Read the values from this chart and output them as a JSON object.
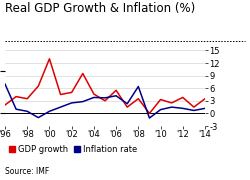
{
  "title": "Real GDP Growth & Inflation (%)",
  "source": "Source: IMF",
  "years": [
    1996,
    1997,
    1998,
    1999,
    2000,
    2001,
    2002,
    2003,
    2004,
    2005,
    2006,
    2007,
    2008,
    2009,
    2010,
    2011,
    2012,
    2013,
    2014
  ],
  "gdp_growth": [
    2.0,
    4.0,
    3.5,
    6.5,
    13.0,
    4.5,
    5.0,
    9.5,
    4.6,
    3.0,
    5.5,
    1.5,
    3.5,
    0.0,
    3.3,
    2.5,
    3.8,
    1.5,
    3.5
  ],
  "inflation": [
    7.0,
    1.0,
    0.5,
    -1.0,
    0.5,
    1.5,
    2.5,
    2.8,
    3.8,
    3.7,
    4.2,
    2.3,
    6.4,
    -1.1,
    0.9,
    1.5,
    1.2,
    0.7,
    1.2
  ],
  "gdp_color": "#dd0000",
  "inflation_color": "#00008b",
  "ylim": [
    -3,
    15
  ],
  "yticks": [
    -3,
    0,
    3,
    6,
    9,
    12,
    15
  ],
  "background_color": "#ffffff",
  "title_fontsize": 8.5,
  "tick_fontsize": 6.0,
  "legend_fontsize": 6.0,
  "source_fontsize": 5.5,
  "xtick_years": [
    1996,
    1998,
    2000,
    2002,
    2004,
    2006,
    2008,
    2010,
    2012,
    2014
  ],
  "xtick_labels": [
    "'96",
    "'98",
    "'00",
    "'02",
    "'04",
    "'06",
    "'08",
    "'10",
    "'12",
    "'14"
  ]
}
